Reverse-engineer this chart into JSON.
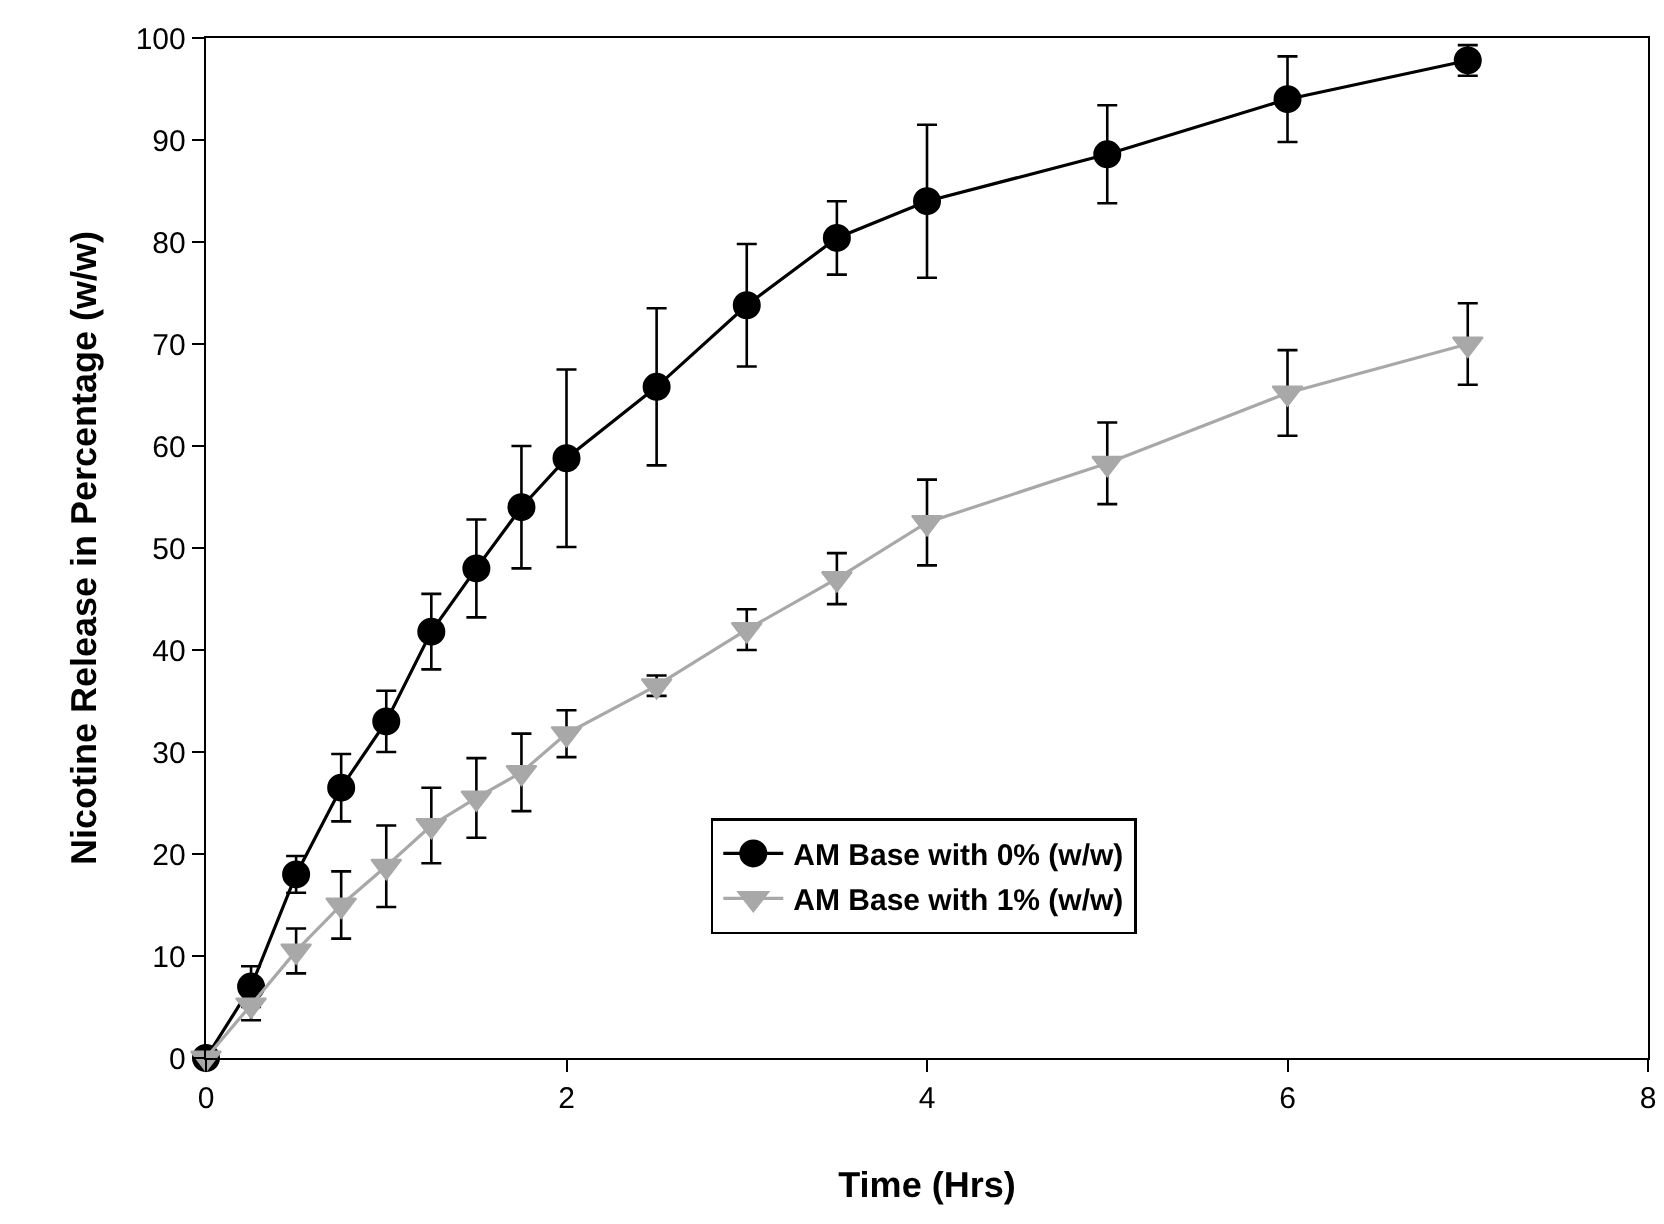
{
  "chart_data": {
    "type": "line",
    "xlabel": "Time (Hrs)",
    "ylabel": "Nicotine Release in Percentage (w/w)",
    "x": [
      0,
      0.25,
      0.5,
      0.75,
      1,
      1.25,
      1.5,
      1.75,
      2,
      2.5,
      3,
      3.5,
      4,
      5,
      6,
      7
    ],
    "series": [
      {
        "name": "AM Base with 0% (w/w)",
        "color": "#000000",
        "marker": "circle",
        "line_style": "solid",
        "values": [
          0,
          7,
          18,
          26.5,
          33,
          41.8,
          48,
          54,
          58.8,
          65.8,
          73.8,
          80.4,
          84,
          88.6,
          94,
          97.8
        ],
        "errors": [
          null,
          2,
          1.8,
          3.3,
          3,
          3.7,
          4.8,
          6,
          8.7,
          7.7,
          6,
          3.6,
          7.5,
          4.8,
          4.2,
          1.5
        ]
      },
      {
        "name": "AM Base with 1% (w/w)",
        "color": "#a8a8a8",
        "marker": "triangle",
        "line_style": "solid",
        "values": [
          0,
          5.2,
          10.5,
          15,
          18.8,
          22.8,
          25.5,
          28,
          31.8,
          36.5,
          42,
          47,
          52.5,
          58.3,
          65.2,
          70
        ],
        "errors": [
          null,
          1.5,
          2.2,
          3.3,
          4,
          3.7,
          3.9,
          3.8,
          2.3,
          1,
          2,
          2.5,
          4.2,
          4,
          4.2,
          4
        ]
      }
    ],
    "xlim": [
      0,
      8
    ],
    "xticks": [
      0,
      2,
      4,
      6,
      8
    ],
    "ylim": [
      0,
      100
    ],
    "yticks": [
      0,
      10,
      20,
      30,
      40,
      50,
      60,
      70,
      80,
      90,
      100
    ],
    "grid": false,
    "legend": "bottom right"
  }
}
